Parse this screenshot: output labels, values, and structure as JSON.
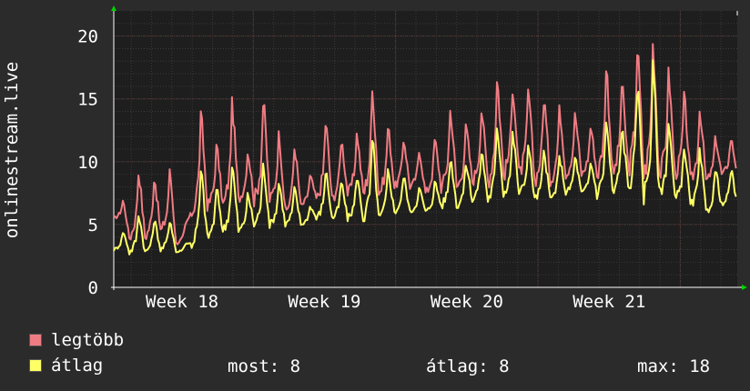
{
  "chart_data": {
    "type": "line",
    "ylabel": "onlinestream.live",
    "ylim": [
      0,
      22
    ],
    "yticks": [
      0,
      5,
      10,
      15,
      20
    ],
    "xticks": [
      "Week 18",
      "Week 19",
      "Week 20",
      "Week 21"
    ],
    "grid": true,
    "colors": {
      "background": "#2b2b2b",
      "plot": "#1e1e1e",
      "grid": "#5a3a3a",
      "max": "#f07c83",
      "avg": "#ffff66",
      "arrow": "#00d000"
    },
    "x_range_weeks": [
      17.02,
      21.4
    ],
    "series": [
      {
        "name": "legtöbb",
        "color": "#f07c83",
        "daily_peaks": [
          7.0,
          9.5,
          9.0,
          9.5,
          5.0,
          14.0,
          11.5,
          15.0,
          11.0,
          15.2,
          12.5,
          11.5,
          9.0,
          13.5,
          12.0,
          12.5,
          16.2,
          13.0,
          12.0,
          11.0,
          12.0,
          14.5,
          13.0,
          14.5,
          17.0,
          16.5,
          16.0,
          15.5,
          14.5,
          14.0,
          13.0,
          18.0,
          16.5,
          19.5,
          20.0,
          17.5,
          15.5,
          14.5,
          12.0,
          12.0
        ],
        "daily_lows": [
          5.5,
          4.0,
          4.0,
          4.5,
          3.5,
          6.0,
          6.5,
          6.5,
          7.0,
          7.0,
          7.0,
          6.0,
          6.5,
          7.0,
          7.0,
          7.5,
          7.5,
          7.5,
          8.0,
          8.0,
          7.5,
          8.0,
          8.0,
          8.5,
          8.5,
          9.0,
          9.0,
          8.5,
          8.5,
          9.0,
          9.0,
          9.0,
          9.0,
          9.5,
          9.0,
          9.0,
          9.0,
          8.5,
          8.5,
          9.0
        ]
      },
      {
        "name": "átlag",
        "color": "#ffff66",
        "daily_peaks": [
          4.5,
          6.0,
          5.5,
          5.5,
          3.5,
          9.5,
          8.0,
          10.0,
          7.5,
          10.0,
          8.5,
          8.0,
          6.5,
          9.5,
          8.5,
          9.0,
          12.0,
          9.5,
          9.0,
          8.0,
          8.5,
          10.5,
          10.0,
          11.0,
          13.0,
          12.5,
          11.5,
          11.0,
          10.5,
          10.5,
          10.0,
          13.5,
          13.0,
          16.5,
          18.0,
          13.5,
          11.5,
          11.0,
          9.5,
          9.5
        ],
        "daily_lows": [
          3.0,
          2.8,
          2.8,
          3.0,
          2.8,
          3.5,
          4.0,
          4.5,
          4.5,
          5.0,
          5.0,
          5.0,
          5.0,
          5.5,
          5.5,
          5.5,
          5.5,
          5.5,
          6.0,
          6.0,
          6.0,
          6.5,
          6.5,
          7.0,
          7.0,
          7.5,
          7.5,
          7.0,
          7.0,
          7.5,
          7.5,
          7.5,
          7.5,
          8.0,
          7.5,
          7.5,
          7.0,
          6.5,
          6.0,
          6.5
        ]
      }
    ]
  },
  "legend": {
    "max_label": "legtöbb",
    "avg_label": "átlag"
  },
  "stats": {
    "now": "most: 8",
    "avg": "átlag: 8",
    "max": "max: 18"
  }
}
